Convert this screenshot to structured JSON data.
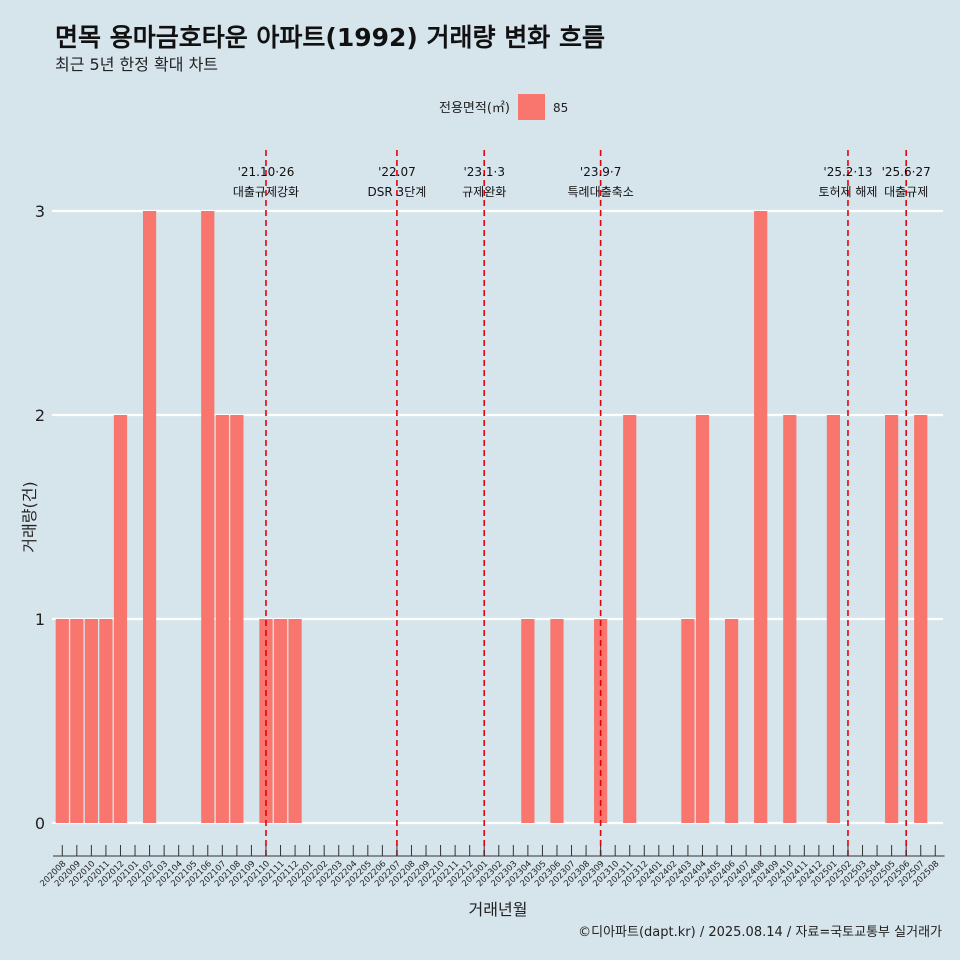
{
  "chart_data": {
    "type": "bar",
    "title": "면목 용마금호타운 아파트(1992) 거래량 변화 흐름",
    "subtitle": "최근 5년 한정 확대 차트",
    "xlabel": "거래년월",
    "ylabel": "거래량(건)",
    "ylim": [
      0,
      3
    ],
    "yticks": [
      "0",
      "1",
      "2",
      "3"
    ],
    "legend": {
      "title": "전용면적(㎡)",
      "placement": "top-center"
    },
    "series": [
      {
        "name": "85",
        "color": "#f8766d",
        "categories": [
          "202008",
          "202009",
          "202010",
          "202011",
          "202012",
          "202101",
          "202102",
          "202103",
          "202104",
          "202105",
          "202106",
          "202107",
          "202108",
          "202109",
          "202110",
          "202111",
          "202112",
          "202201",
          "202202",
          "202203",
          "202204",
          "202205",
          "202206",
          "202207",
          "202208",
          "202209",
          "202210",
          "202211",
          "202212",
          "202301",
          "202302",
          "202303",
          "202304",
          "202305",
          "202306",
          "202307",
          "202308",
          "202309",
          "202310",
          "202311",
          "202312",
          "202401",
          "202402",
          "202403",
          "202404",
          "202405",
          "202406",
          "202407",
          "202408",
          "202409",
          "202410",
          "202411",
          "202412",
          "202501",
          "202502",
          "202503",
          "202504",
          "202505",
          "202506",
          "202507",
          "202508"
        ],
        "values": [
          1,
          1,
          1,
          1,
          2,
          0,
          3,
          0,
          0,
          0,
          3,
          2,
          2,
          0,
          1,
          1,
          1,
          0,
          0,
          0,
          0,
          0,
          0,
          0,
          0,
          0,
          0,
          0,
          0,
          0,
          0,
          0,
          1,
          0,
          1,
          0,
          0,
          1,
          0,
          2,
          0,
          0,
          0,
          1,
          2,
          0,
          1,
          0,
          3,
          0,
          2,
          0,
          0,
          2,
          0,
          0,
          0,
          2,
          0,
          2,
          0
        ]
      }
    ],
    "events": [
      {
        "x": "202110",
        "date": "'21.10·26",
        "label": "대출규제강화"
      },
      {
        "x": "202207",
        "date": "'22.07",
        "label": "DSR 3단계"
      },
      {
        "x": "202301",
        "date": "'23.1·3",
        "label": "규제완화"
      },
      {
        "x": "202309",
        "date": "'23.9·7",
        "label": "특례대출축소"
      },
      {
        "x": "202502",
        "date": "'25.2·13",
        "label": "토허제 해제"
      },
      {
        "x": "202506",
        "date": "'25.6·27",
        "label": "대출규제"
      }
    ],
    "gridlines": "horizontal",
    "event_line_color": "#e8000b"
  },
  "footer": {
    "caption": "©디아파트(dapt.kr) / 2025.08.14 / 자료=국토교통부 실거래가"
  }
}
